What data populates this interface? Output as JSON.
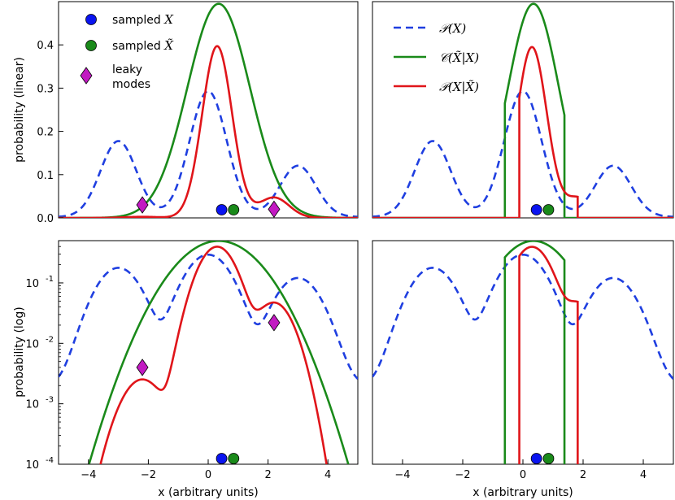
{
  "chart_data": [
    {
      "type": "line",
      "id": "top-left",
      "scale": "linear",
      "ylabel": "probability (linear)",
      "xlim": [
        -5,
        5
      ],
      "ylim": [
        0,
        0.5
      ],
      "yticks": [
        0.0,
        0.1,
        0.2,
        0.3,
        0.4
      ],
      "ytick_labels": [
        "0.0",
        "0.1",
        "0.2",
        "0.3",
        "0.4"
      ],
      "xticks": [],
      "series": [
        "P_X",
        "C_gauss",
        "P_post_gauss"
      ],
      "markers": [
        "sampled_x",
        "sampled_xt",
        "leaky"
      ],
      "legend": "markers",
      "grid": false
    },
    {
      "type": "line",
      "id": "top-right",
      "scale": "linear",
      "ylabel": "",
      "xlim": [
        -5,
        5
      ],
      "ylim": [
        0,
        0.5
      ],
      "yticks": [],
      "xticks": [],
      "series": [
        "P_X",
        "C_box",
        "P_post_box"
      ],
      "markers": [
        "sampled_x",
        "sampled_xt"
      ],
      "legend": "lines",
      "grid": false
    },
    {
      "type": "line",
      "id": "bottom-left",
      "scale": "log",
      "ylabel": "probability (log)",
      "xlabel": "x (arbitrary units)",
      "xlim": [
        -5,
        5
      ],
      "ylim": [
        0.0001,
        0.5
      ],
      "yticks": [
        0.1,
        0.01,
        0.001,
        0.0001
      ],
      "ytick_labels": [
        {
          "base": "10",
          "exp": "-1"
        },
        {
          "base": "10",
          "exp": "-2"
        },
        {
          "base": "10",
          "exp": "-3"
        },
        {
          "base": "10",
          "exp": "-4"
        }
      ],
      "xticks": [
        -4,
        -2,
        0,
        2,
        4
      ],
      "xtick_labels": [
        "−4",
        "−2",
        "0",
        "2",
        "4"
      ],
      "series": [
        "P_X",
        "C_gauss",
        "P_post_gauss"
      ],
      "markers": [
        "sampled_x",
        "sampled_xt",
        "leaky"
      ],
      "grid": false
    },
    {
      "type": "line",
      "id": "bottom-right",
      "scale": "log",
      "ylabel": "",
      "xlabel": "x (arbitrary units)",
      "xlim": [
        -5,
        5
      ],
      "ylim": [
        0.0001,
        0.5
      ],
      "yticks": [],
      "xticks": [
        -4,
        -2,
        0,
        2,
        4
      ],
      "xtick_labels": [
        "−4",
        "−2",
        "0",
        "2",
        "4"
      ],
      "series": [
        "P_X",
        "C_box",
        "P_post_box"
      ],
      "markers": [
        "sampled_x",
        "sampled_xt"
      ],
      "grid": false
    }
  ],
  "series_defs": {
    "P_X": {
      "label": "𝒫(X)",
      "color": "#1f3fe0",
      "style": "dashed",
      "kind": "mixture",
      "components": [
        {
          "mu": -3.0,
          "sigma": 0.6,
          "peak": 0.175
        },
        {
          "mu": 0.0,
          "sigma": 0.62,
          "peak": 0.29
        },
        {
          "mu": 3.0,
          "sigma": 0.6,
          "peak": 0.118
        }
      ],
      "floor": 0.003
    },
    "C_gauss": {
      "label": "𝒞(X̃|X)",
      "color": "#1a8a1a",
      "style": "solid",
      "kind": "gaussian",
      "mu": 0.35,
      "sigma": 1.05,
      "peak": 0.495
    },
    "C_box": {
      "label": "𝒞(X̃|X)",
      "color": "#1a8a1a",
      "style": "solid",
      "kind": "box",
      "lo": -0.6,
      "hi": 1.38,
      "mu": 0.35,
      "sigma": 0.85,
      "peak": 0.495
    },
    "P_post_gauss": {
      "label": "𝒫(X|X̃)",
      "color": "#e0151a",
      "style": "solid",
      "kind": "posterior",
      "mu": 0.3,
      "sigma": 0.5,
      "peak": 0.395,
      "fromPX": 0.4,
      "gmu": 0.35,
      "gsigma": 1.05
    },
    "P_post_box": {
      "label": "𝒫(X|X̃)",
      "color": "#e0151a",
      "style": "solid",
      "kind": "posterior_box",
      "lo": -0.12,
      "hi": 1.82,
      "mu": 0.3,
      "sigma": 0.5,
      "peak": 0.395,
      "fromPX": 0.4
    }
  },
  "marker_defs": {
    "sampled_x": {
      "label": "sampled X",
      "shape": "circle",
      "color": "#0a14f0",
      "x": 0.45
    },
    "sampled_xt": {
      "label": "sampled X̃",
      "shape": "circle",
      "color": "#1a8a1a",
      "x": 0.85
    },
    "leaky": {
      "label_lines": [
        "leaky",
        "modes"
      ],
      "shape": "diamond",
      "color": "#c21ac2",
      "points_linear": [
        {
          "x": -2.2,
          "y": 0.03
        },
        {
          "x": 2.2,
          "y": 0.02
        }
      ],
      "points_log": [
        {
          "x": -2.2,
          "y": 0.004
        },
        {
          "x": 2.2,
          "y": 0.022
        }
      ]
    }
  },
  "legend_markers": {
    "sampled_x": {
      "text": "sampled ",
      "math": "X"
    },
    "sampled_xt": {
      "text": "sampled ",
      "math": "X̃"
    },
    "leaky_line1": "leaky",
    "leaky_line2": "modes"
  },
  "legend_lines": {
    "P_X": "𝒫(X)",
    "C": "𝒞(X̃|X)",
    "P_post": "𝒫(X|X̃)"
  },
  "labels": {
    "ylabel_top": "probability (linear)",
    "ylabel_bottom": "probability (log)",
    "xlabel_left": "x (arbitrary units)",
    "xlabel_right": "x (arbitrary units)"
  }
}
